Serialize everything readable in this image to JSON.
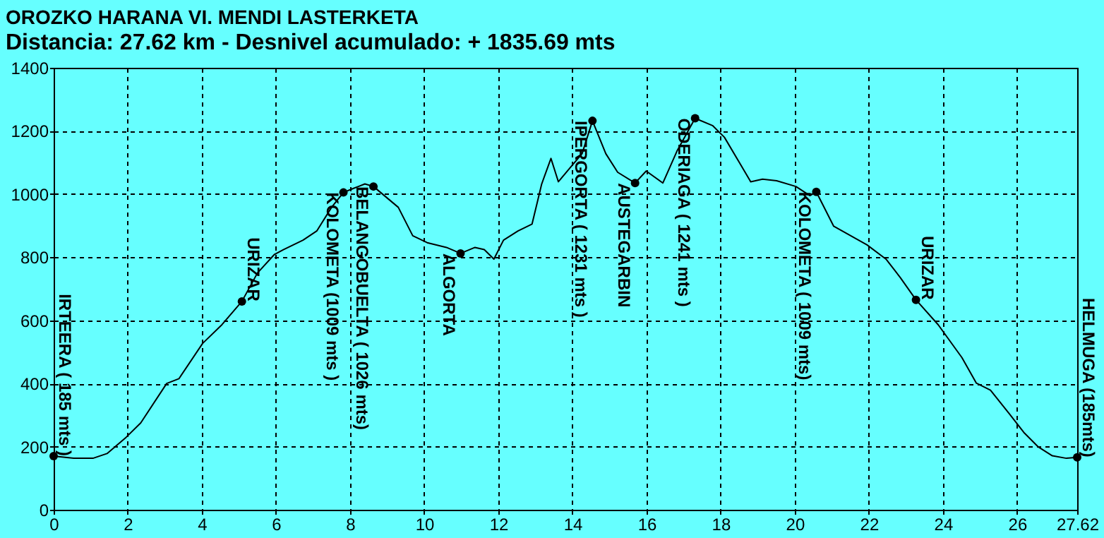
{
  "chart_data": {
    "type": "line",
    "title": "OROZKO HARANA VI. MENDI LASTERKETA",
    "subtitle": "Distancia: 27.62 km - Desnivel acumulado: + 1835.69 mts",
    "series": [
      {
        "color": "#000000",
        "x": [
          0,
          0.54,
          1.06,
          1.44,
          1.96,
          2.35,
          3.05,
          3.38,
          4.02,
          4.54,
          5.08,
          5.5,
          5.96,
          6.2,
          6.73,
          7.1,
          7.5,
          7.82,
          8.07,
          8.4,
          8.63,
          9.3,
          9.69,
          10.08,
          10.6,
          10.98,
          11.37,
          11.62,
          11.88,
          12.14,
          12.53,
          12.91,
          13.17,
          13.42,
          13.62,
          13.94,
          14.26,
          14.54,
          14.9,
          15.22,
          15.69,
          15.99,
          16.44,
          16.82,
          17.31,
          17.78,
          18.1,
          18.55,
          18.81,
          19.13,
          19.51,
          20.03,
          20.41,
          20.58,
          21.05,
          21.95,
          22.46,
          22.85,
          23.27,
          23.87,
          24.51,
          24.9,
          25.28,
          25.79,
          26.18,
          26.56,
          26.95,
          27.33,
          27.62
        ],
        "values": [
          170,
          163,
          163,
          178,
          230,
          275,
          400,
          415,
          527,
          586,
          660,
          750,
          809,
          824,
          854,
          883,
          958,
          1005,
          1017,
          1032,
          1024,
          958,
          868,
          846,
          831,
          812,
          831,
          824,
          794,
          854,
          883,
          905,
          1032,
          1113,
          1039,
          1084,
          1128,
          1232,
          1128,
          1069,
          1035,
          1073,
          1035,
          1136,
          1240,
          1217,
          1180,
          1091,
          1039,
          1047,
          1042,
          1024,
          995,
          1007,
          898,
          839,
          794,
          735,
          665,
          586,
          482,
          401,
          379,
          304,
          245,
          200,
          171,
          163,
          166
        ]
      },
      {
        "type": "scatter",
        "color": "#000000",
        "marker": "circle",
        "x": [
          0,
          5.08,
          7.82,
          8.63,
          10.98,
          14.54,
          15.69,
          17.31,
          20.58,
          23.27,
          27.62
        ],
        "values": [
          170,
          660,
          1005,
          1024,
          812,
          1232,
          1035,
          1240,
          1007,
          665,
          166
        ]
      }
    ],
    "annotations": [
      {
        "text": "IRTEERA ( 185 mts )",
        "x": 0,
        "y": 170
      },
      {
        "text": "URIZAR",
        "x": 5.08,
        "y": 660
      },
      {
        "text": "KOLOMETA (1009 mts )",
        "x": 7.82,
        "y": 1005
      },
      {
        "text": "BELANGOBUELTA ( 1026 mts)",
        "x": 8.63,
        "y": 1024
      },
      {
        "text": "ALGORTA",
        "x": 10.98,
        "y": 812
      },
      {
        "text": "IPERGORTA ( 1231 mts )",
        "x": 14.54,
        "y": 1232
      },
      {
        "text": "AUSTEGARBIN",
        "x": 15.69,
        "y": 1035
      },
      {
        "text": "ODERIAGA ( 1241 mts )",
        "x": 17.31,
        "y": 1240
      },
      {
        "text": "KOLOMETA ( 1009 mts)",
        "x": 20.58,
        "y": 1007
      },
      {
        "text": "URIZAR",
        "x": 23.27,
        "y": 665
      },
      {
        "text": "HELMUGA (185mts)",
        "x": 27.62,
        "y": 166
      }
    ],
    "xlim": [
      0,
      27.62
    ],
    "xticks": [
      0,
      2,
      4,
      6,
      8,
      10,
      12,
      14,
      16,
      18,
      20,
      22,
      24,
      26,
      27.62
    ],
    "ylim": [
      0,
      1400
    ],
    "yticks": [
      0,
      200,
      400,
      600,
      800,
      1000,
      1200,
      1400
    ],
    "grid": true,
    "line_style": "solid"
  }
}
